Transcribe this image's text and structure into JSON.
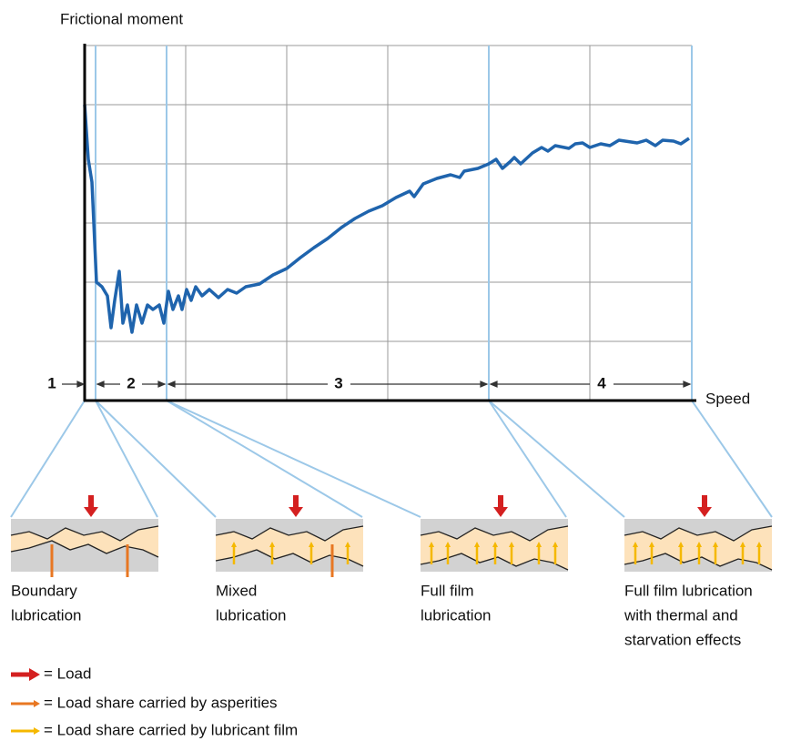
{
  "y_axis_label": "Frictional moment",
  "x_axis_label": "Speed",
  "regions": [
    "1",
    "2",
    "3",
    "4"
  ],
  "panels": [
    {
      "lines": [
        "Boundary",
        "lubrication"
      ]
    },
    {
      "lines": [
        "Mixed",
        "lubrication"
      ]
    },
    {
      "lines": [
        "Full film",
        "lubrication"
      ]
    },
    {
      "lines": [
        "Full film lubrication",
        "with thermal and",
        "starvation effects"
      ]
    }
  ],
  "legend": [
    {
      "label": "= Load"
    },
    {
      "label": "= Load share carried by asperities"
    },
    {
      "label": "= Load share carried by lubricant film"
    }
  ]
}
